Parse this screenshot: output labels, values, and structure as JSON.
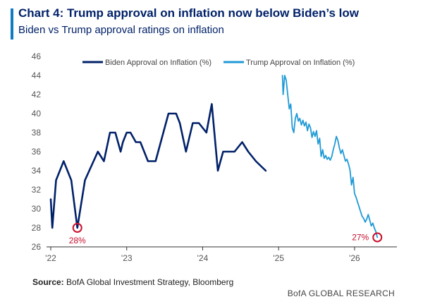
{
  "header": {
    "title": "Chart 4: Trump approval on inflation now below Biden’s low",
    "subtitle": "Biden vs Trump approval ratings on inflation"
  },
  "footer": {
    "source_label": "Source:",
    "source_text": "BofA Global Investment Strategy, Bloomberg",
    "brand": "BofA GLOBAL RESEARCH"
  },
  "colors": {
    "accent": "#0f7bc4",
    "biden": "#012169",
    "trump": "#1f9ad6",
    "marker": "#c8102e"
  },
  "chart_data": {
    "type": "line",
    "xlim": [
      2022.0,
      2026.4
    ],
    "ylim": [
      26,
      46
    ],
    "x_tick_values": [
      2022,
      2023,
      2024,
      2025,
      2026
    ],
    "x_tick_labels": [
      "'22",
      "'23",
      "'24",
      "'25",
      "'26"
    ],
    "y_ticks": [
      26,
      28,
      30,
      32,
      34,
      36,
      38,
      40,
      42,
      44,
      46
    ],
    "grid": false,
    "legend_position": "top",
    "series": [
      {
        "name": "Biden Approval on Inflation (%)",
        "color": "#012169",
        "x": [
          2022.0,
          2022.02,
          2022.07,
          2022.17,
          2022.27,
          2022.35,
          2022.45,
          2022.62,
          2022.7,
          2022.78,
          2022.85,
          2022.92,
          2022.95,
          2023.0,
          2023.05,
          2023.12,
          2023.18,
          2023.28,
          2023.38,
          2023.55,
          2023.65,
          2023.7,
          2023.78,
          2023.87,
          2023.95,
          2024.05,
          2024.12,
          2024.2,
          2024.27,
          2024.3,
          2024.35,
          2024.42,
          2024.52,
          2024.6,
          2024.7,
          2024.83
        ],
        "y": [
          31,
          28,
          33,
          35,
          33,
          28,
          33,
          36,
          35,
          38,
          38,
          36,
          37,
          38,
          38,
          37,
          37,
          35,
          35,
          40,
          40,
          39,
          36,
          39,
          39,
          38,
          41,
          34,
          36,
          36,
          36,
          36,
          37,
          36,
          35,
          34
        ]
      },
      {
        "name": "Trump Approval on Inflation (%)",
        "color": "#1f9ad6",
        "x": [
          2025.05,
          2025.06,
          2025.08,
          2025.1,
          2025.12,
          2025.14,
          2025.16,
          2025.18,
          2025.2,
          2025.22,
          2025.24,
          2025.26,
          2025.28,
          2025.3,
          2025.32,
          2025.34,
          2025.36,
          2025.38,
          2025.4,
          2025.42,
          2025.44,
          2025.46,
          2025.48,
          2025.5,
          2025.52,
          2025.54,
          2025.56,
          2025.58,
          2025.6,
          2025.62,
          2025.64,
          2025.66,
          2025.68,
          2025.7,
          2025.72,
          2025.74,
          2025.76,
          2025.78,
          2025.8,
          2025.82,
          2025.84,
          2025.86,
          2025.88,
          2025.9,
          2025.92,
          2025.94,
          2025.96,
          2025.98,
          2026.0,
          2026.02,
          2026.04,
          2026.06,
          2026.08,
          2026.1,
          2026.12,
          2026.14,
          2026.16,
          2026.18,
          2026.2,
          2026.22,
          2026.24,
          2026.26,
          2026.28,
          2026.3
        ],
        "y": [
          44,
          42,
          44,
          43.5,
          42,
          40.5,
          41,
          38.5,
          38,
          39.5,
          40,
          39.2,
          39.5,
          38.8,
          39.3,
          38.7,
          39.1,
          38.2,
          38.9,
          38.5,
          37.5,
          38.1,
          37.6,
          38.2,
          36.8,
          37.4,
          35.5,
          36.2,
          35.3,
          35.6,
          35.2,
          35.4,
          35.1,
          35.5,
          36.2,
          36.8,
          37.6,
          37.2,
          36.4,
          35.8,
          36.2,
          35.6,
          35.0,
          35.2,
          34.7,
          34.1,
          32.5,
          33.3,
          31.6,
          31.2,
          30.7,
          30.2,
          29.7,
          29.2,
          29.0,
          28.6,
          28.9,
          29.4,
          28.8,
          28.2,
          28.5,
          28.0,
          27.6,
          27.0
        ]
      }
    ],
    "annotations": [
      {
        "label": "28%",
        "x": 2022.35,
        "y": 28,
        "label_side": "below"
      },
      {
        "label": "27%",
        "x": 2026.3,
        "y": 27,
        "label_side": "left"
      }
    ]
  }
}
